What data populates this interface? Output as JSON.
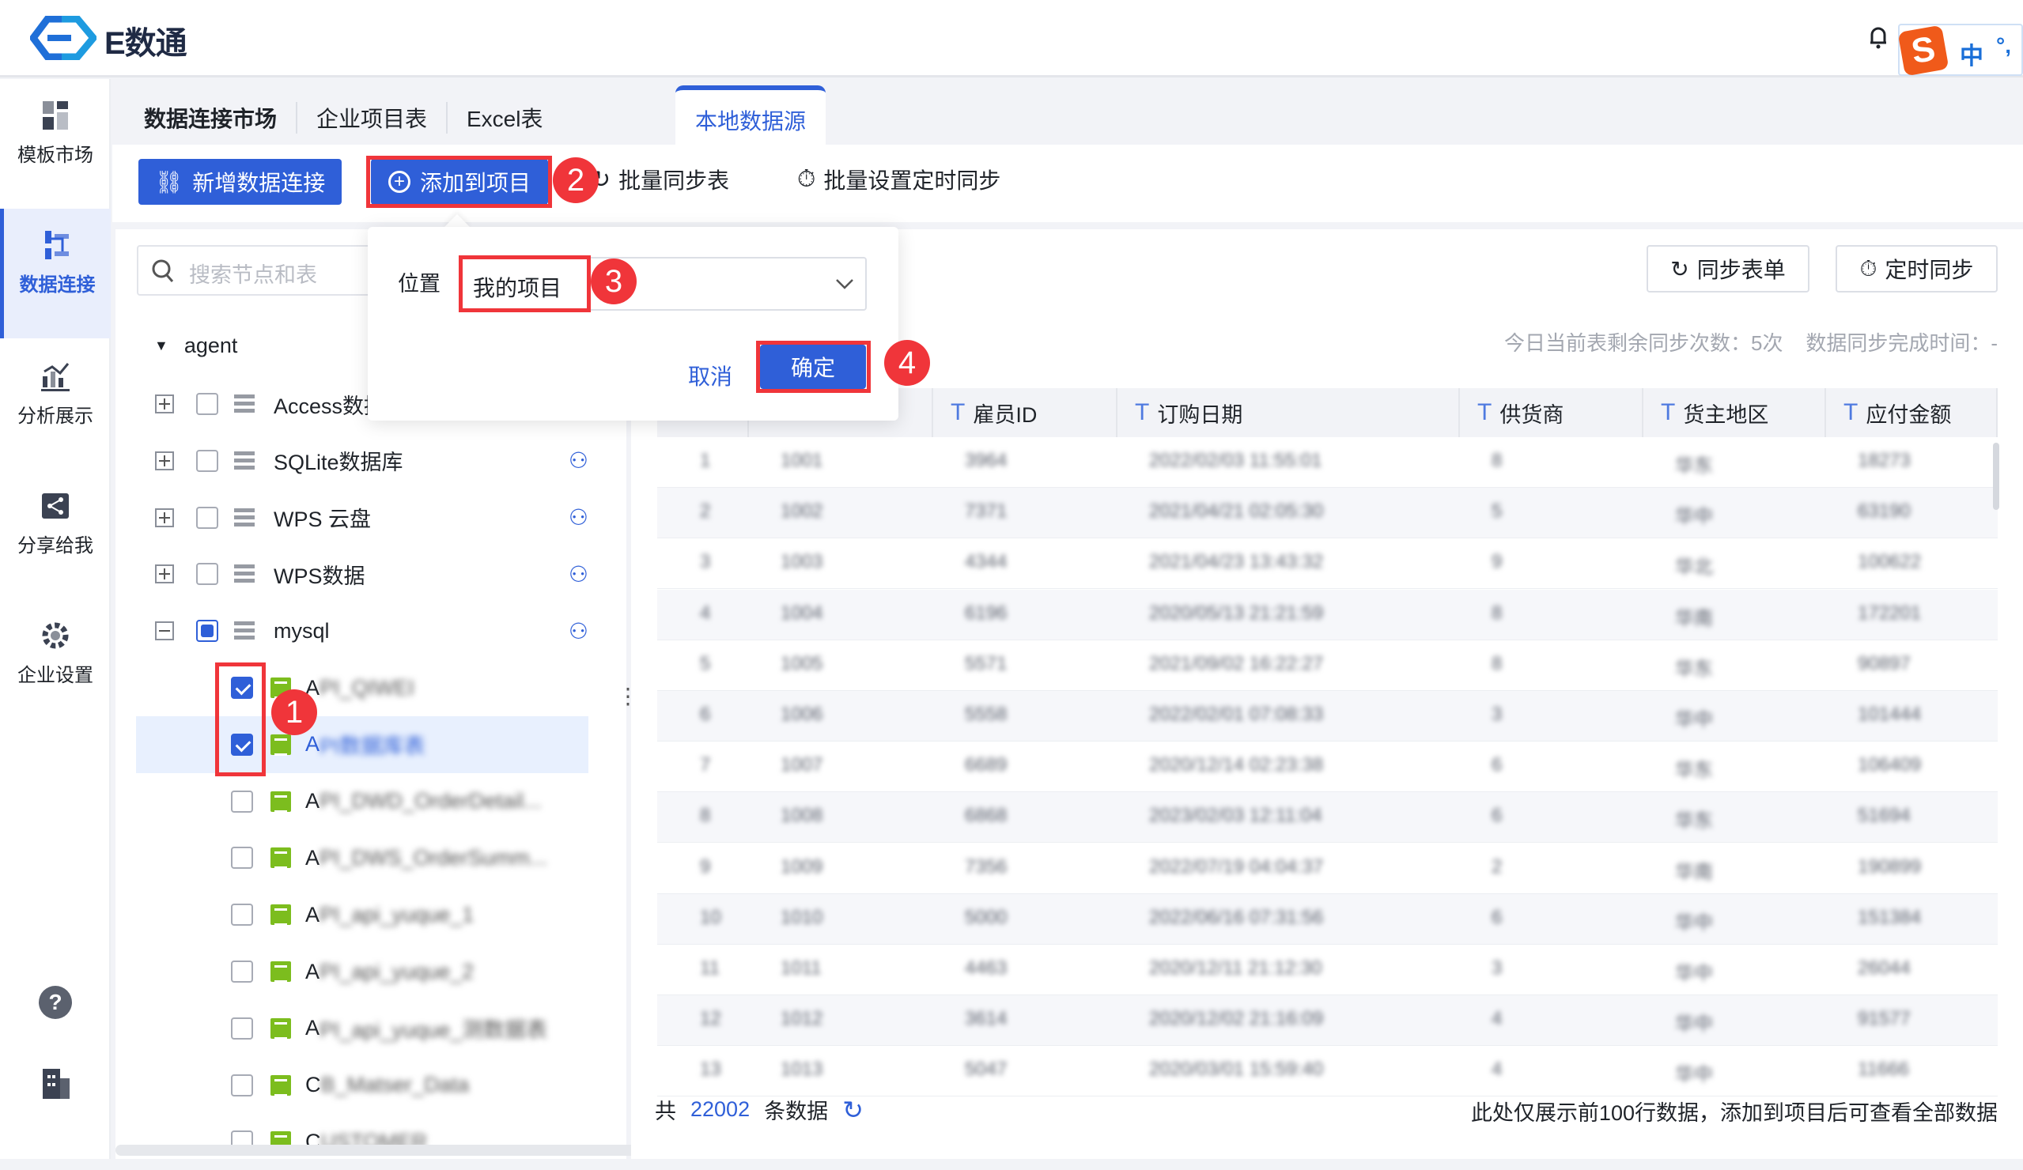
{
  "app": {
    "name": "E数通"
  },
  "topbar": {
    "icons": [
      "bell-icon",
      "user-icon"
    ],
    "ime": {
      "logo": "S",
      "mode": "中",
      "punct": "°,"
    }
  },
  "sidebar": {
    "items": [
      {
        "label": "模板市场",
        "icon": "template-market-icon",
        "active": false
      },
      {
        "label": "数据连接",
        "icon": "data-connection-icon",
        "active": true
      },
      {
        "label": "分析展示",
        "icon": "analysis-icon",
        "active": false
      },
      {
        "label": "分享给我",
        "icon": "share-icon",
        "active": false
      },
      {
        "label": "企业设置",
        "icon": "gear-icon",
        "active": false
      }
    ],
    "bottom_icons": [
      "help-icon",
      "building-icon"
    ]
  },
  "tabs": [
    {
      "label": "数据连接市场"
    },
    {
      "label": "企业项目表"
    },
    {
      "label": "Excel表"
    },
    {
      "label": "本地数据源",
      "active": true
    }
  ],
  "toolbar": {
    "new_connection": "新增数据连接",
    "add_to_project": "添加到项目",
    "batch_sync": "批量同步表",
    "batch_schedule": "批量设置定时同步"
  },
  "search": {
    "placeholder": "搜索节点和表"
  },
  "tree": {
    "root": "agent",
    "sources": [
      {
        "label": "Access数据",
        "expanded": false,
        "check": "none",
        "owner_icon": false
      },
      {
        "label": "SQLite数据库",
        "expanded": false,
        "check": "none",
        "owner_icon": true
      },
      {
        "label": "WPS 云盘",
        "expanded": false,
        "check": "none",
        "owner_icon": true
      },
      {
        "label": "WPS数据",
        "expanded": false,
        "check": "none",
        "owner_icon": true
      },
      {
        "label": "mysql",
        "expanded": true,
        "check": "partial",
        "owner_icon": true
      }
    ],
    "tables": [
      {
        "first": "A",
        "rest": "PI_QIWEI",
        "checked": true,
        "selected": false
      },
      {
        "first": "A",
        "rest": "PI数据库表",
        "checked": true,
        "selected": true
      },
      {
        "first": "A",
        "rest": "PI_DWD_OrderDetail...",
        "checked": false,
        "selected": false
      },
      {
        "first": "A",
        "rest": "PI_DWS_OrderSumm...",
        "checked": false,
        "selected": false
      },
      {
        "first": "A",
        "rest": "PI_api_yuque_1",
        "checked": false,
        "selected": false
      },
      {
        "first": "A",
        "rest": "PI_api_yuque_2",
        "checked": false,
        "selected": false
      },
      {
        "first": "A",
        "rest": "PI_api_yuque_测数据表",
        "checked": false,
        "selected": false
      },
      {
        "first": "C",
        "rest": "B_Matser_Data",
        "checked": false,
        "selected": false
      },
      {
        "first": "C",
        "rest": "USTOMER",
        "checked": false,
        "selected": false
      }
    ]
  },
  "popover": {
    "location_label": "位置",
    "location_value": "我的项目",
    "cancel": "取消",
    "confirm": "确定"
  },
  "annotations": [
    "1",
    "2",
    "3",
    "4"
  ],
  "right": {
    "sync_form": "同步表单",
    "schedule_sync": "定时同步",
    "info": "今日当前表剩余同步次数：5次    数据同步完成时间：-",
    "columns": [
      "",
      "",
      "雇员ID",
      "订购日期",
      "供货商",
      "货主地区",
      "应付金额"
    ],
    "rows": [
      [
        "1",
        "1001",
        "3964",
        "2022/02/03 11:55:01",
        "8",
        "华东",
        "18273"
      ],
      [
        "2",
        "1002",
        "7371",
        "2021/04/21 02:05:30",
        "5",
        "华中",
        "63190"
      ],
      [
        "3",
        "1003",
        "4344",
        "2021/04/23 13:43:32",
        "9",
        "华北",
        "100622"
      ],
      [
        "4",
        "1004",
        "6196",
        "2020/05/13 21:21:59",
        "8",
        "华南",
        "172201"
      ],
      [
        "5",
        "1005",
        "5571",
        "2021/09/02 16:22:27",
        "8",
        "华东",
        "90897"
      ],
      [
        "6",
        "1006",
        "5558",
        "2022/02/01 07:08:33",
        "3",
        "华中",
        "101444"
      ],
      [
        "7",
        "1007",
        "6689",
        "2020/12/14 02:23:38",
        "6",
        "华东",
        "106409"
      ],
      [
        "8",
        "1008",
        "6868",
        "2023/02/03 12:11:04",
        "6",
        "华东",
        "51694"
      ],
      [
        "9",
        "1009",
        "7356",
        "2022/07/19 04:04:37",
        "2",
        "华南",
        "190899"
      ],
      [
        "10",
        "1010",
        "5000",
        "2022/06/16 07:31:56",
        "6",
        "华中",
        "151384"
      ],
      [
        "11",
        "1011",
        "4463",
        "2020/12/11 21:12:30",
        "3",
        "华中",
        "26044"
      ],
      [
        "12",
        "1012",
        "3614",
        "2020/12/02 21:16:09",
        "4",
        "华中",
        "91577"
      ],
      [
        "13",
        "1013",
        "5047",
        "2020/03/01 15:59:40",
        "4",
        "华中",
        "11666"
      ]
    ],
    "footer": {
      "prefix": "共",
      "count": "22002",
      "suffix": "条数据",
      "note": "此处仅展示前100行数据，添加到项目后可查看全部数据"
    }
  },
  "colors": {
    "primary": "#2f5fd8",
    "annotation": "#f0353a",
    "table_icon": "#7cbd1e"
  }
}
